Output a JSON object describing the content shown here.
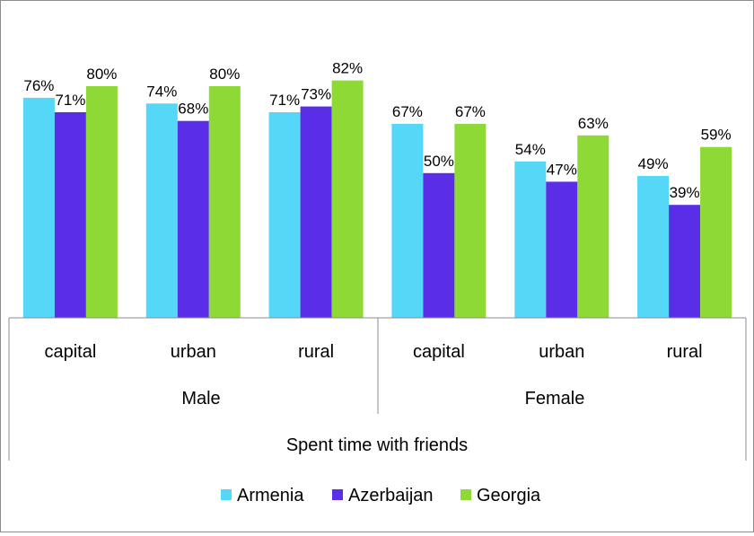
{
  "chart_data": {
    "type": "bar",
    "title": "",
    "xlabel": "",
    "ylabel": "",
    "ylim": [
      0,
      100
    ],
    "grid": false,
    "legend_position": "bottom",
    "value_format": "{v}%",
    "group_levels": {
      "outer": "Spent time with friends",
      "middle": [
        "Male",
        "Female"
      ],
      "categories": [
        "capital",
        "urban",
        "rural",
        "capital",
        "urban",
        "rural"
      ]
    },
    "series": [
      {
        "name": "Armenia",
        "color": "#55d7f7",
        "values": [
          76,
          74,
          71,
          67,
          54,
          49
        ]
      },
      {
        "name": "Azerbaijan",
        "color": "#5a2ee6",
        "values": [
          71,
          68,
          73,
          50,
          47,
          39
        ]
      },
      {
        "name": "Georgia",
        "color": "#8ed935",
        "values": [
          80,
          80,
          82,
          67,
          63,
          59
        ]
      }
    ]
  }
}
